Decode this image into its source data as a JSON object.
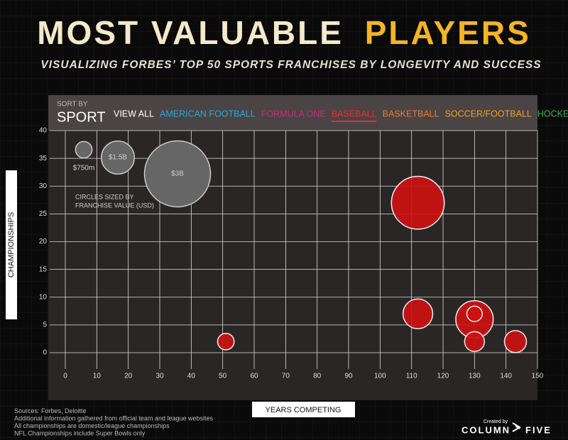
{
  "chart_data": {
    "type": "bubble",
    "title": "MOST VALUABLE",
    "title_highlight": "PLAYERS",
    "subtitle": "VISUALIZING FORBES’ TOP 50 SPORTS FRANCHISES BY LONGEVITY AND SUCCESS",
    "sort_label": "SORT BY",
    "sort_value": "SPORT",
    "filters": [
      {
        "name": "VIEW ALL",
        "color": "#ffffff"
      },
      {
        "name": "AMERICAN FOOTBALL",
        "color": "#2aa8d8"
      },
      {
        "name": "FORMULA ONE",
        "color": "#c0307a"
      },
      {
        "name": "BASEBALL",
        "color": "#e03030",
        "active": true
      },
      {
        "name": "BASKETBALL",
        "color": "#e87a30"
      },
      {
        "name": "SOCCER/FOOTBALL",
        "color": "#f0a020"
      },
      {
        "name": "HOCKEY",
        "color": "#40b050"
      }
    ],
    "x_label": "YEARS COMPETING",
    "y_label": "CHAMPIONSHIPS",
    "xlim": [
      0,
      150
    ],
    "xticks": [
      0,
      10,
      20,
      30,
      40,
      50,
      60,
      70,
      80,
      90,
      100,
      110,
      120,
      130,
      140,
      150
    ],
    "ylim": [
      0,
      40
    ],
    "yticks": [
      0,
      5,
      10,
      15,
      20,
      25,
      30,
      35,
      40
    ],
    "grid": true,
    "series": [
      {
        "color": "#cc1111",
        "x": [
          112,
          112,
          130,
          130,
          130,
          143,
          51
        ],
        "values": [
          27,
          7,
          6,
          7,
          2,
          2,
          2
        ],
        "sizes": [
          2400,
          1350,
          1700,
          700,
          900,
          1000,
          750
        ]
      }
    ],
    "size_legend": {
      "values": [
        750,
        1500,
        3000
      ],
      "value_labels": [
        "$750m",
        "$1.5B",
        "$3B"
      ],
      "note": [
        "CIRCLES SIZED BY",
        "FRANCHISE VALUE (USD)"
      ]
    },
    "footnotes": [
      "Sources: Forbes, Deloitte",
      "Additional information gathered from official team and league websites",
      "All championships are domestic/league championships",
      "NFL Championships include Super Bowls only"
    ],
    "credit": {
      "prefix": "Created by",
      "name": "COLUMN",
      "name2": "FIVE"
    }
  }
}
